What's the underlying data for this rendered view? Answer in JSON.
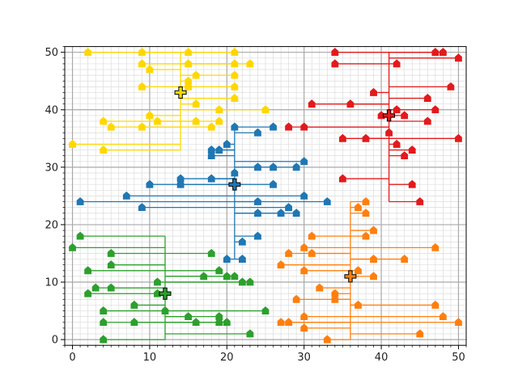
{
  "chart_data": {
    "type": "scatter",
    "title": "",
    "xlabel": "",
    "ylabel": "",
    "xlim": [
      -1,
      51
    ],
    "ylim": [
      -1,
      51
    ],
    "grid": "major and minor",
    "major_ticks": [
      0,
      10,
      20,
      30,
      40,
      50
    ],
    "minor_step": 1,
    "x_tick_labels": [
      "0",
      "10",
      "20",
      "30",
      "40",
      "50"
    ],
    "y_tick_labels": [
      "0",
      "10",
      "20",
      "30",
      "40",
      "50"
    ],
    "series": [
      {
        "color": "#ffd700",
        "hub": [
          14,
          43
        ],
        "points": [
          [
            2,
            50
          ],
          [
            9,
            50
          ],
          [
            15,
            50
          ],
          [
            21,
            50
          ],
          [
            9,
            48
          ],
          [
            15,
            48
          ],
          [
            21,
            48
          ],
          [
            23,
            48
          ],
          [
            10,
            47
          ],
          [
            16,
            46
          ],
          [
            21,
            46
          ],
          [
            15,
            45
          ],
          [
            9,
            44
          ],
          [
            15,
            44
          ],
          [
            21,
            44
          ],
          [
            21,
            42
          ],
          [
            16,
            41
          ],
          [
            19,
            40
          ],
          [
            25,
            40
          ],
          [
            10,
            39
          ],
          [
            11,
            38
          ],
          [
            4,
            38
          ],
          [
            16,
            38
          ],
          [
            18,
            37
          ],
          [
            5,
            37
          ],
          [
            9,
            37
          ],
          [
            19,
            38
          ],
          [
            0,
            34
          ],
          [
            4,
            33
          ]
        ]
      },
      {
        "color": "#e31a1c",
        "hub": [
          41,
          39
        ],
        "points": [
          [
            34,
            50
          ],
          [
            47,
            50
          ],
          [
            48,
            50
          ],
          [
            34,
            48
          ],
          [
            50,
            49
          ],
          [
            42,
            48
          ],
          [
            49,
            44
          ],
          [
            39,
            43
          ],
          [
            46,
            42
          ],
          [
            31,
            41
          ],
          [
            36,
            41
          ],
          [
            42,
            40
          ],
          [
            47,
            40
          ],
          [
            40,
            39
          ],
          [
            43,
            39
          ],
          [
            46,
            38
          ],
          [
            28,
            37
          ],
          [
            30,
            37
          ],
          [
            41,
            36
          ],
          [
            35,
            35
          ],
          [
            38,
            35
          ],
          [
            42,
            34
          ],
          [
            50,
            35
          ],
          [
            44,
            33
          ],
          [
            43,
            32
          ],
          [
            35,
            28
          ],
          [
            44,
            27
          ],
          [
            45,
            24
          ]
        ]
      },
      {
        "color": "#1f77b4",
        "hub": [
          21,
          27
        ],
        "points": [
          [
            21,
            37
          ],
          [
            24,
            36
          ],
          [
            26,
            37
          ],
          [
            18,
            33
          ],
          [
            19,
            33
          ],
          [
            20,
            34
          ],
          [
            18,
            32
          ],
          [
            24,
            30
          ],
          [
            26,
            30
          ],
          [
            29,
            30
          ],
          [
            30,
            31
          ],
          [
            21,
            29
          ],
          [
            14,
            28
          ],
          [
            18,
            28
          ],
          [
            10,
            27
          ],
          [
            14,
            27
          ],
          [
            26,
            27
          ],
          [
            7,
            25
          ],
          [
            30,
            25
          ],
          [
            1,
            24
          ],
          [
            24,
            24
          ],
          [
            33,
            24
          ],
          [
            9,
            23
          ],
          [
            28,
            23
          ],
          [
            24,
            22
          ],
          [
            27,
            22
          ],
          [
            29,
            22
          ],
          [
            22,
            17
          ],
          [
            24,
            18
          ],
          [
            20,
            14
          ],
          [
            22,
            14
          ]
        ]
      },
      {
        "color": "#ff7f0e",
        "hub": [
          36,
          11
        ],
        "points": [
          [
            38,
            24
          ],
          [
            37,
            23
          ],
          [
            38,
            22
          ],
          [
            31,
            18
          ],
          [
            38,
            18
          ],
          [
            39,
            19
          ],
          [
            47,
            16
          ],
          [
            30,
            16
          ],
          [
            28,
            15
          ],
          [
            31,
            15
          ],
          [
            39,
            14
          ],
          [
            43,
            14
          ],
          [
            27,
            13
          ],
          [
            30,
            12
          ],
          [
            37,
            12
          ],
          [
            39,
            11
          ],
          [
            32,
            9
          ],
          [
            34,
            8
          ],
          [
            29,
            7
          ],
          [
            34,
            7
          ],
          [
            37,
            6
          ],
          [
            47,
            6
          ],
          [
            48,
            4
          ],
          [
            30,
            4
          ],
          [
            27,
            3
          ],
          [
            28,
            3
          ],
          [
            30,
            2
          ],
          [
            50,
            3
          ],
          [
            45,
            1
          ],
          [
            33,
            0
          ]
        ]
      },
      {
        "color": "#2ca02c",
        "hub": [
          12,
          8
        ],
        "points": [
          [
            1,
            18
          ],
          [
            0,
            16
          ],
          [
            5,
            15
          ],
          [
            18,
            15
          ],
          [
            5,
            13
          ],
          [
            2,
            12
          ],
          [
            19,
            12
          ],
          [
            17,
            11
          ],
          [
            20,
            11
          ],
          [
            21,
            11
          ],
          [
            22,
            10
          ],
          [
            23,
            10
          ],
          [
            11,
            10
          ],
          [
            3,
            9
          ],
          [
            5,
            9
          ],
          [
            2,
            8
          ],
          [
            11,
            8
          ],
          [
            8,
            6
          ],
          [
            12,
            5
          ],
          [
            4,
            5
          ],
          [
            25,
            5
          ],
          [
            15,
            4
          ],
          [
            19,
            4
          ],
          [
            16,
            3
          ],
          [
            19,
            3
          ],
          [
            20,
            3
          ],
          [
            4,
            3
          ],
          [
            8,
            3
          ],
          [
            23,
            1
          ],
          [
            4,
            0
          ]
        ]
      }
    ]
  }
}
